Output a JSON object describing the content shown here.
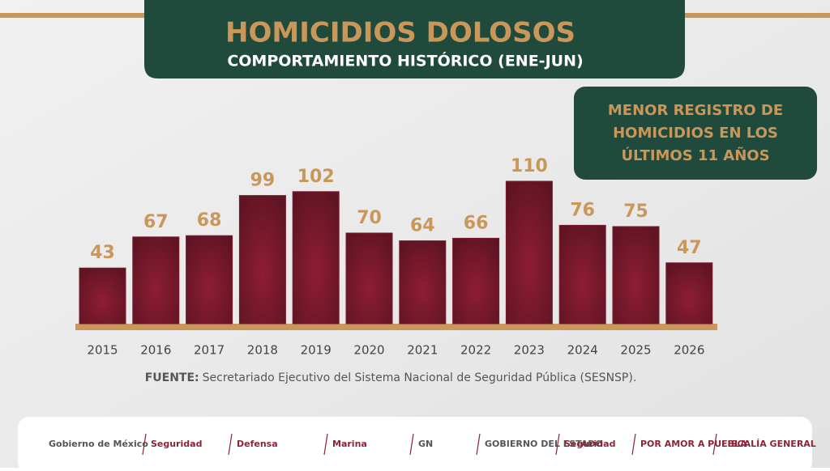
{
  "chart_data": {
    "type": "bar",
    "title": "HOMICIDIOS DOLOSOS",
    "subtitle": "COMPORTAMIENTO HISTÓRICO (ENE-JUN)",
    "annotation": [
      "MENOR REGISTRO DE",
      "HOMICIDIOS EN LOS",
      "ÚLTIMOS 11 AÑOS"
    ],
    "categories": [
      "2015",
      "2016",
      "2017",
      "2018",
      "2019",
      "2020",
      "2021",
      "2022",
      "2023",
      "2024",
      "2025",
      "2026"
    ],
    "values": [
      43,
      67,
      68,
      99,
      102,
      70,
      64,
      66,
      110,
      76,
      75,
      47
    ],
    "color": "#7a1a2c",
    "label_color": "#c9975a",
    "source_label": "FUENTE:",
    "source": "Secretariado Ejecutivo del Sistema Nacional de Seguridad Pública (SESNSP)."
  },
  "footer": {
    "logos": [
      "Gobierno de México",
      "Seguridad",
      "Defensa",
      "Marina",
      "GN",
      "GOBIERNO DEL ESTADO",
      "Seguridad",
      "POR AMOR A PUEBLA",
      "FISCALÍA GENERAL"
    ]
  }
}
